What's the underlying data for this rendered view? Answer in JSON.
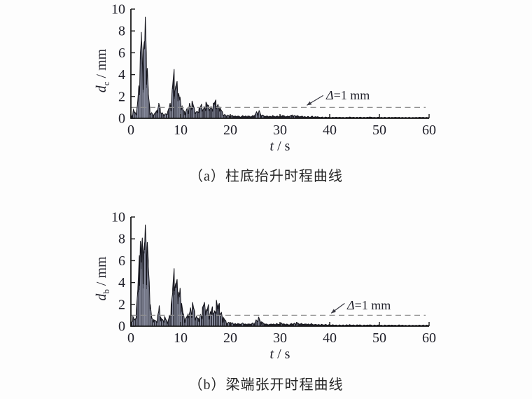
{
  "page": {
    "background": "#fdfdfd",
    "ink": "#1a1a1a",
    "dash_color": "#8f8f8f",
    "fill_color": "#20202a",
    "stripe_color": "#a8adc2"
  },
  "chart_data": [
    {
      "type": "area",
      "title": "（a）柱底抬升时程曲线",
      "xlabel": "t / s",
      "ylabel": "d_c / mm",
      "xlabel_parts": {
        "var": "t",
        "unit": " / s"
      },
      "ylabel_parts": {
        "var": "d",
        "sub": "c",
        "unit": " / mm"
      },
      "xlim": [
        0,
        60
      ],
      "ylim": [
        0,
        10
      ],
      "x_ticks": [
        0,
        10,
        20,
        30,
        40,
        50,
        60
      ],
      "y_ticks": [
        0,
        2,
        4,
        6,
        8,
        10
      ],
      "grid": false,
      "legend": "none",
      "threshold": {
        "value": 1,
        "symbol": "Δ",
        "rest": "=1 mm",
        "label": "Δ=1 mm"
      },
      "annotation": {
        "text_t": 39.4,
        "arrow_t": 35.4
      },
      "envelope": [
        [
          0,
          0.2
        ],
        [
          0.5,
          0.8
        ],
        [
          0.9,
          0.5
        ],
        [
          1.3,
          1.2
        ],
        [
          1.6,
          3.0
        ],
        [
          1.9,
          6.0
        ],
        [
          2.1,
          7.9
        ],
        [
          2.3,
          5.5
        ],
        [
          2.5,
          6.3
        ],
        [
          2.7,
          7.0
        ],
        [
          2.9,
          9.3
        ],
        [
          3.1,
          6.0
        ],
        [
          3.3,
          4.6
        ],
        [
          3.5,
          2.6
        ],
        [
          3.8,
          1.0
        ],
        [
          4.2,
          0.5
        ],
        [
          4.7,
          0.4
        ],
        [
          5.2,
          0.7
        ],
        [
          5.6,
          1.4
        ],
        [
          5.9,
          0.9
        ],
        [
          6.3,
          0.5
        ],
        [
          6.9,
          0.4
        ],
        [
          7.4,
          0.6
        ],
        [
          7.9,
          1.4
        ],
        [
          8.3,
          2.6
        ],
        [
          8.7,
          4.5
        ],
        [
          9.0,
          2.9
        ],
        [
          9.3,
          3.4
        ],
        [
          9.6,
          2.3
        ],
        [
          9.9,
          1.9
        ],
        [
          10.3,
          1.1
        ],
        [
          10.8,
          0.6
        ],
        [
          11.3,
          0.9
        ],
        [
          11.8,
          1.4
        ],
        [
          12.3,
          1.6
        ],
        [
          12.7,
          1.0
        ],
        [
          13.2,
          0.6
        ],
        [
          13.7,
          0.9
        ],
        [
          14.2,
          1.3
        ],
        [
          14.7,
          1.1
        ],
        [
          15.1,
          1.5
        ],
        [
          15.6,
          1.2
        ],
        [
          16.1,
          1.1
        ],
        [
          16.6,
          1.4
        ],
        [
          17.1,
          1.7
        ],
        [
          17.5,
          1.3
        ],
        [
          17.9,
          1.0
        ],
        [
          18.4,
          0.6
        ],
        [
          18.9,
          0.35
        ],
        [
          19.5,
          0.3
        ],
        [
          20.5,
          0.25
        ],
        [
          21.5,
          0.2
        ],
        [
          22.5,
          0.25
        ],
        [
          23.5,
          0.2
        ],
        [
          24.5,
          0.25
        ],
        [
          25.3,
          0.6
        ],
        [
          25.8,
          0.7
        ],
        [
          26.4,
          0.3
        ],
        [
          27.5,
          0.2
        ],
        [
          28.5,
          0.25
        ],
        [
          29.5,
          0.2
        ],
        [
          30.5,
          0.25
        ],
        [
          31.5,
          0.2
        ],
        [
          32.5,
          0.3
        ],
        [
          33.5,
          0.25
        ],
        [
          34.5,
          0.2
        ],
        [
          35.5,
          0.15
        ],
        [
          36.5,
          0.2
        ],
        [
          37.5,
          0.15
        ],
        [
          38.5,
          0.12
        ],
        [
          40,
          0.12
        ],
        [
          42,
          0.1
        ],
        [
          44,
          0.12
        ],
        [
          46,
          0.1
        ],
        [
          48,
          0.12
        ],
        [
          50,
          0.1
        ],
        [
          52,
          0.1
        ],
        [
          54,
          0.1
        ],
        [
          56,
          0.1
        ],
        [
          58,
          0.1
        ],
        [
          60,
          0.1
        ]
      ]
    },
    {
      "type": "area",
      "title": "（b）梁端张开时程曲线",
      "xlabel": "t / s",
      "ylabel": "d_b / mm",
      "xlabel_parts": {
        "var": "t",
        "unit": " / s"
      },
      "ylabel_parts": {
        "var": "d",
        "sub": "b",
        "unit": " / mm"
      },
      "xlim": [
        0,
        60
      ],
      "ylim": [
        0,
        10
      ],
      "x_ticks": [
        0,
        10,
        20,
        30,
        40,
        50,
        60
      ],
      "y_ticks": [
        0,
        2,
        4,
        6,
        8,
        10
      ],
      "grid": false,
      "legend": "none",
      "threshold": {
        "value": 1,
        "symbol": "Δ",
        "rest": "=1 mm",
        "label": "Δ=1 mm"
      },
      "annotation": {
        "text_t": 43.7,
        "arrow_t": 40.3
      },
      "envelope": [
        [
          0,
          0.3
        ],
        [
          0.4,
          0.9
        ],
        [
          0.8,
          0.6
        ],
        [
          1.1,
          1.5
        ],
        [
          1.4,
          3.5
        ],
        [
          1.7,
          6.5
        ],
        [
          1.9,
          7.8
        ],
        [
          2.1,
          7.0
        ],
        [
          2.3,
          8.1
        ],
        [
          2.5,
          6.8
        ],
        [
          2.7,
          7.4
        ],
        [
          2.9,
          9.3
        ],
        [
          3.1,
          7.2
        ],
        [
          3.3,
          7.7
        ],
        [
          3.5,
          6.0
        ],
        [
          3.7,
          4.0
        ],
        [
          3.9,
          2.0
        ],
        [
          4.2,
          0.8
        ],
        [
          4.6,
          0.6
        ],
        [
          5.0,
          0.5
        ],
        [
          5.4,
          1.0
        ],
        [
          5.7,
          1.9
        ],
        [
          6.0,
          0.8
        ],
        [
          6.4,
          0.6
        ],
        [
          6.8,
          0.9
        ],
        [
          7.2,
          0.5
        ],
        [
          7.7,
          0.9
        ],
        [
          8.1,
          2.0
        ],
        [
          8.4,
          3.4
        ],
        [
          8.7,
          5.3
        ],
        [
          9.0,
          3.9
        ],
        [
          9.3,
          4.3
        ],
        [
          9.6,
          3.1
        ],
        [
          9.9,
          3.5
        ],
        [
          10.2,
          2.1
        ],
        [
          10.6,
          1.1
        ],
        [
          11.0,
          0.7
        ],
        [
          11.5,
          1.1
        ],
        [
          12.0,
          1.7
        ],
        [
          12.4,
          2.2
        ],
        [
          12.8,
          1.4
        ],
        [
          13.2,
          0.9
        ],
        [
          13.6,
          0.7
        ],
        [
          14.0,
          1.1
        ],
        [
          14.4,
          1.7
        ],
        [
          14.8,
          2.2
        ],
        [
          15.2,
          1.5
        ],
        [
          15.6,
          2.0
        ],
        [
          16.0,
          1.3
        ],
        [
          16.4,
          1.8
        ],
        [
          16.8,
          1.4
        ],
        [
          17.2,
          2.4
        ],
        [
          17.5,
          1.8
        ],
        [
          17.8,
          2.1
        ],
        [
          18.2,
          1.3
        ],
        [
          18.6,
          0.8
        ],
        [
          19.1,
          0.5
        ],
        [
          19.7,
          0.35
        ],
        [
          20.5,
          0.3
        ],
        [
          21.5,
          0.25
        ],
        [
          22.5,
          0.3
        ],
        [
          23.5,
          0.2
        ],
        [
          24.5,
          0.3
        ],
        [
          25.2,
          0.6
        ],
        [
          25.7,
          0.85
        ],
        [
          26.3,
          0.4
        ],
        [
          27.3,
          0.2
        ],
        [
          28.3,
          0.2
        ],
        [
          29.3,
          0.25
        ],
        [
          30.3,
          0.3
        ],
        [
          31.3,
          0.2
        ],
        [
          32.3,
          0.25
        ],
        [
          33.3,
          0.35
        ],
        [
          34.3,
          0.25
        ],
        [
          35.3,
          0.2
        ],
        [
          36.3,
          0.25
        ],
        [
          37.3,
          0.15
        ],
        [
          38.3,
          0.18
        ],
        [
          40,
          0.15
        ],
        [
          42,
          0.12
        ],
        [
          44,
          0.15
        ],
        [
          46,
          0.12
        ],
        [
          48,
          0.12
        ],
        [
          50,
          0.12
        ],
        [
          52,
          0.1
        ],
        [
          54,
          0.12
        ],
        [
          56,
          0.1
        ],
        [
          58,
          0.1
        ],
        [
          60,
          0.12
        ]
      ]
    }
  ]
}
